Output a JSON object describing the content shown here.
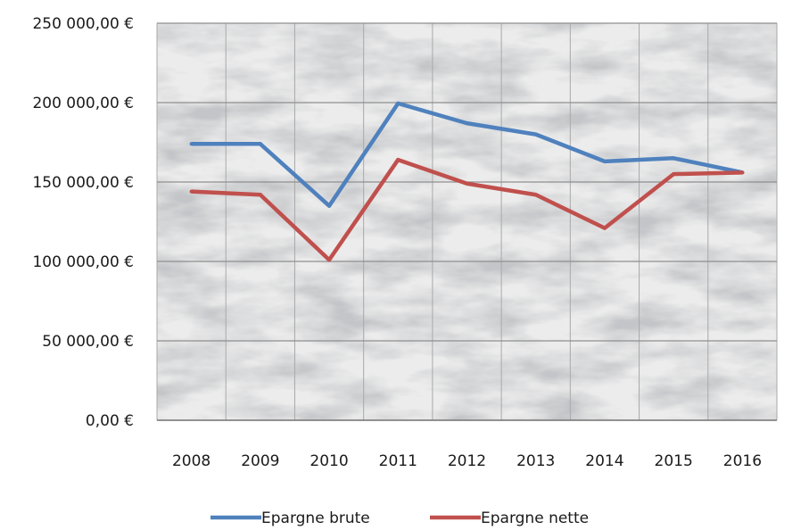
{
  "chart_data": {
    "type": "line",
    "title": "",
    "xlabel": "",
    "ylabel": "",
    "categories": [
      "2008",
      "2009",
      "2010",
      "2011",
      "2012",
      "2013",
      "2014",
      "2015",
      "2016"
    ],
    "ylim": [
      0,
      250000
    ],
    "ytick_labels": [
      "0,00 €",
      "50 000,00 €",
      "100 000,00 €",
      "150 000,00 €",
      "200 000,00 €",
      "250 000,00 €"
    ],
    "series": [
      {
        "name": "Epargne brute",
        "color": "#4f81bd",
        "values": [
          174000,
          174000,
          135000,
          199500,
          187000,
          180000,
          163000,
          165000,
          156000
        ]
      },
      {
        "name": "Epargne nette",
        "color": "#c0504d",
        "values": [
          144000,
          142000,
          101000,
          164000,
          149000,
          142000,
          121000,
          155000,
          156000
        ]
      }
    ],
    "grid": true,
    "legend_position": "bottom",
    "plot_background": "grey marble texture"
  }
}
